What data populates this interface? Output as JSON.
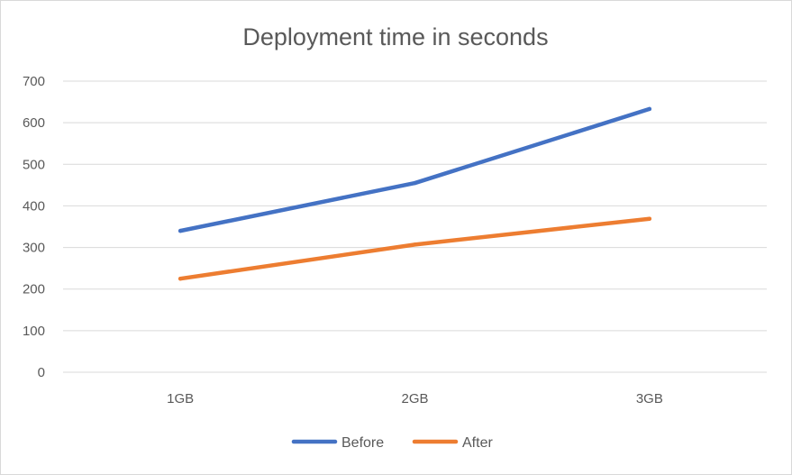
{
  "chart_data": {
    "type": "line",
    "title": "Deployment time in seconds",
    "xlabel": "",
    "ylabel": "",
    "categories": [
      "1GB",
      "2GB",
      "3GB"
    ],
    "ylim": [
      0,
      700
    ],
    "yticks": [
      0,
      100,
      200,
      300,
      400,
      500,
      600,
      700
    ],
    "ytick_labels": [
      "0",
      "100",
      "200",
      "300",
      "400",
      "500",
      "600",
      "700"
    ],
    "grid": true,
    "legend_position": "bottom",
    "series": [
      {
        "name": "Before",
        "color": "#4472C4",
        "values": [
          340,
          455,
          633
        ]
      },
      {
        "name": "After",
        "color": "#ED7D31",
        "values": [
          225,
          307,
          369
        ]
      }
    ]
  }
}
